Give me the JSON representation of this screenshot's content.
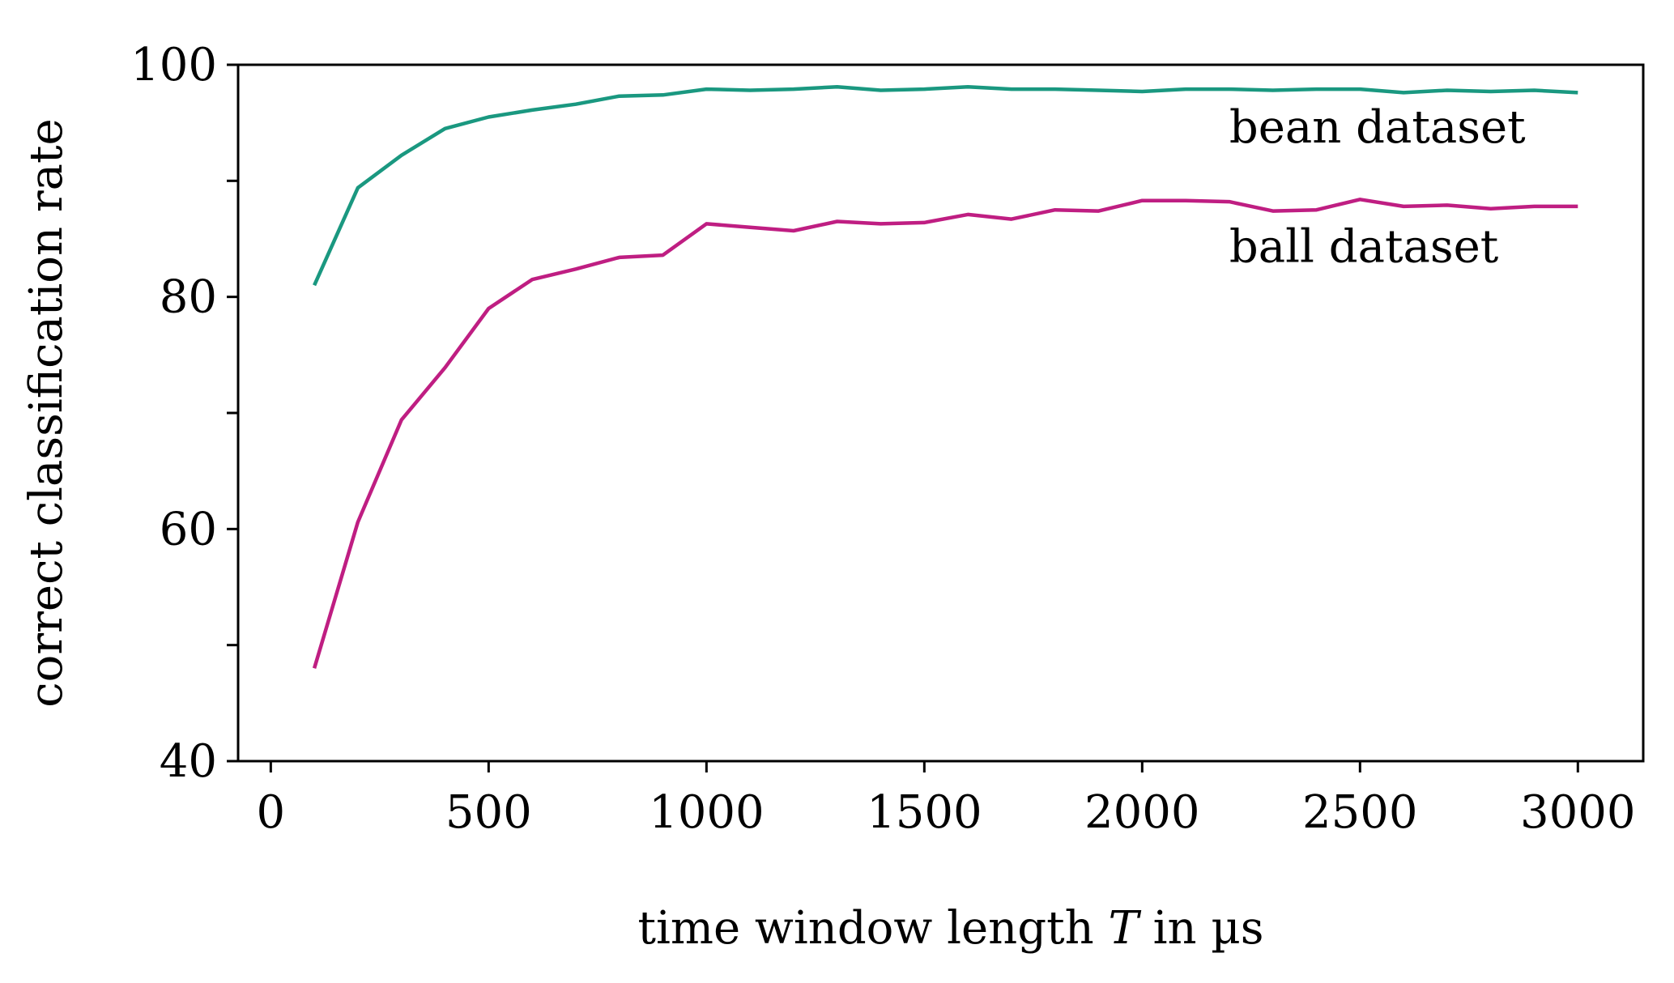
{
  "chart_data": {
    "type": "line",
    "title": "",
    "xlabel": "time window length T in µs",
    "xlabel_parts": {
      "before": "time window length ",
      "italic": "T",
      "after": " in µs"
    },
    "ylabel": "correct classification rate",
    "xlim": [
      -75,
      3150
    ],
    "ylim": [
      40,
      100
    ],
    "xticks": [
      0,
      500,
      1000,
      1500,
      2000,
      2500,
      3000
    ],
    "xtick_labels": [
      "0",
      "500",
      "1000",
      "1500",
      "2000",
      "2500",
      "3000"
    ],
    "yticks": [
      40,
      50,
      60,
      70,
      80,
      90,
      100
    ],
    "ytick_labels": [
      "40",
      "",
      "60",
      "",
      "80",
      "",
      "100"
    ],
    "grid": false,
    "legend": "inline labels",
    "x": [
      100,
      200,
      300,
      400,
      500,
      600,
      700,
      800,
      900,
      1000,
      1100,
      1200,
      1300,
      1400,
      1500,
      1600,
      1700,
      1800,
      1900,
      2000,
      2100,
      2200,
      2300,
      2400,
      2500,
      2600,
      2700,
      2800,
      2900,
      3000
    ],
    "series": [
      {
        "name": "bean dataset",
        "color": "#1a9880",
        "label_at": [
          2200,
          93.3
        ],
        "values": [
          81.0,
          89.4,
          92.2,
          94.5,
          95.5,
          96.1,
          96.6,
          97.3,
          97.4,
          97.9,
          97.8,
          97.9,
          98.1,
          97.8,
          97.9,
          98.1,
          97.9,
          97.9,
          97.8,
          97.7,
          97.9,
          97.9,
          97.8,
          97.9,
          97.9,
          97.6,
          97.8,
          97.7,
          97.8,
          97.6
        ]
      },
      {
        "name": "ball dataset",
        "color": "#bf1e82",
        "label_at": [
          2200,
          83.0
        ],
        "values": [
          48.0,
          60.6,
          69.4,
          73.9,
          79.0,
          81.5,
          82.4,
          83.4,
          83.6,
          86.3,
          86.0,
          85.7,
          86.5,
          86.3,
          86.4,
          87.1,
          86.7,
          87.5,
          87.4,
          88.3,
          88.3,
          88.2,
          87.4,
          87.5,
          88.4,
          87.8,
          87.9,
          87.6,
          87.8,
          87.8
        ]
      }
    ]
  }
}
